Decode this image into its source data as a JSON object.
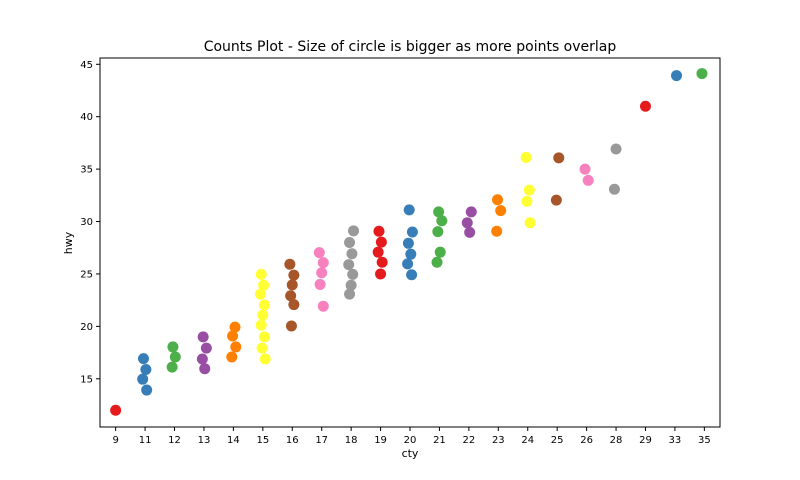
{
  "chart_data": {
    "type": "scatter",
    "title": "Counts Plot - Size of circle is bigger as more points overlap",
    "xlabel": "cty",
    "ylabel": "hwy",
    "x_categories": [
      "9",
      "11",
      "12",
      "13",
      "14",
      "15",
      "16",
      "17",
      "18",
      "19",
      "20",
      "21",
      "22",
      "23",
      "24",
      "25",
      "26",
      "28",
      "29",
      "33",
      "35"
    ],
    "ylim": [
      10.4,
      45.6
    ],
    "yticks": [
      15,
      20,
      25,
      30,
      35,
      40,
      45
    ],
    "colors": [
      "#e41a1c",
      "#377eb8",
      "#4daf4a",
      "#984ea3",
      "#ff7f00",
      "#ffff33",
      "#a65628",
      "#f781bf",
      "#999999"
    ],
    "points": [
      {
        "cty": "9",
        "hwy": [
          12
        ]
      },
      {
        "cty": "11",
        "hwy": [
          14,
          15,
          16,
          17
        ]
      },
      {
        "cty": "12",
        "hwy": [
          16,
          17,
          18
        ]
      },
      {
        "cty": "13",
        "hwy": [
          16,
          17,
          18,
          19
        ]
      },
      {
        "cty": "14",
        "hwy": [
          17,
          18,
          19,
          20
        ]
      },
      {
        "cty": "15",
        "hwy": [
          17,
          18,
          19,
          20,
          21,
          22,
          23,
          24,
          25
        ]
      },
      {
        "cty": "16",
        "hwy": [
          20,
          22,
          23,
          24,
          25,
          26
        ]
      },
      {
        "cty": "17",
        "hwy": [
          22,
          24,
          25,
          26,
          27
        ]
      },
      {
        "cty": "18",
        "hwy": [
          23,
          24,
          25,
          26,
          27,
          28,
          29
        ]
      },
      {
        "cty": "19",
        "hwy": [
          25,
          26,
          27,
          28,
          29
        ]
      },
      {
        "cty": "20",
        "hwy": [
          25,
          26,
          27,
          28,
          29,
          31
        ]
      },
      {
        "cty": "21",
        "hwy": [
          26,
          27,
          29,
          30,
          31
        ]
      },
      {
        "cty": "22",
        "hwy": [
          29,
          30,
          31
        ]
      },
      {
        "cty": "23",
        "hwy": [
          29,
          31,
          32
        ]
      },
      {
        "cty": "24",
        "hwy": [
          30,
          32,
          33,
          36
        ]
      },
      {
        "cty": "25",
        "hwy": [
          32,
          36
        ]
      },
      {
        "cty": "26",
        "hwy": [
          34,
          35
        ]
      },
      {
        "cty": "28",
        "hwy": [
          33,
          37
        ]
      },
      {
        "cty": "29",
        "hwy": [
          41
        ]
      },
      {
        "cty": "33",
        "hwy": [
          44
        ]
      },
      {
        "cty": "35",
        "hwy": [
          44
        ]
      }
    ]
  }
}
